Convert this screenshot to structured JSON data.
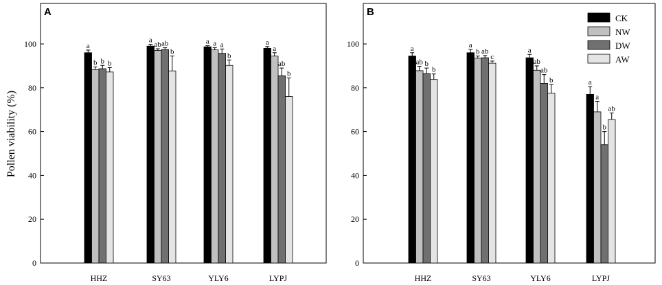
{
  "figure": {
    "ylabel": "Pollen viability (%)"
  },
  "chart_data": [
    {
      "type": "bar",
      "panel": "A",
      "categories": [
        "HHZ",
        "SY63",
        "YLY6",
        "LYPJ"
      ],
      "ylim": [
        0,
        120
      ],
      "yticks": [
        0,
        20,
        40,
        60,
        80,
        100
      ],
      "legend": false,
      "series": [
        {
          "name": "CK",
          "color": "#000000",
          "values": [
            96,
            99,
            98.7,
            98
          ],
          "errors": [
            1.2,
            0.8,
            0.5,
            0.8
          ],
          "letters": [
            "a",
            "a",
            "a",
            "a"
          ]
        },
        {
          "name": "NW",
          "color": "#c0c0c0",
          "values": [
            88.3,
            97,
            97.3,
            94.5
          ],
          "errors": [
            1.2,
            0.8,
            1,
            1.5
          ],
          "letters": [
            "b",
            "ab",
            "a",
            "a"
          ]
        },
        {
          "name": "DW",
          "color": "#707070",
          "values": [
            88.7,
            97.5,
            95.7,
            85.5
          ],
          "errors": [
            1.5,
            0.8,
            2,
            3.5
          ],
          "letters": [
            "b",
            "ab",
            "a",
            "ab"
          ]
        },
        {
          "name": "AW",
          "color": "#e4e4e4",
          "values": [
            87.2,
            87.7,
            90.2,
            76
          ],
          "errors": [
            2,
            6.8,
            2.5,
            8.5
          ],
          "letters": [
            "b",
            "b",
            "b",
            "b"
          ]
        }
      ]
    },
    {
      "type": "bar",
      "panel": "B",
      "categories": [
        "HHZ",
        "SY63",
        "YLY6",
        "LYPJ"
      ],
      "ylim": [
        0,
        120
      ],
      "yticks": [
        0,
        20,
        40,
        60,
        80,
        100
      ],
      "legend": true,
      "legend_position": "top-right",
      "series": [
        {
          "name": "CK",
          "color": "#000000",
          "values": [
            94.5,
            96,
            93.7,
            77
          ],
          "errors": [
            1.5,
            1.5,
            1.5,
            3.5
          ],
          "letters": [
            "a",
            "a",
            "a",
            "a"
          ]
        },
        {
          "name": "NW",
          "color": "#c0c0c0",
          "values": [
            87.8,
            93.5,
            88,
            69
          ],
          "errors": [
            2,
            1,
            2,
            4.8
          ],
          "letters": [
            "ab",
            "b",
            "ab",
            "a"
          ]
        },
        {
          "name": "DW",
          "color": "#707070",
          "values": [
            86.5,
            93.7,
            82,
            54
          ],
          "errors": [
            2.5,
            1,
            4,
            6
          ],
          "letters": [
            "b",
            "ab",
            "ab",
            "b"
          ]
        },
        {
          "name": "AW",
          "color": "#e4e4e4",
          "values": [
            83.8,
            91.2,
            77.5,
            65.5
          ],
          "errors": [
            2.5,
            1,
            4,
            3
          ],
          "letters": [
            "b",
            "c",
            "b",
            "ab"
          ]
        }
      ]
    }
  ]
}
